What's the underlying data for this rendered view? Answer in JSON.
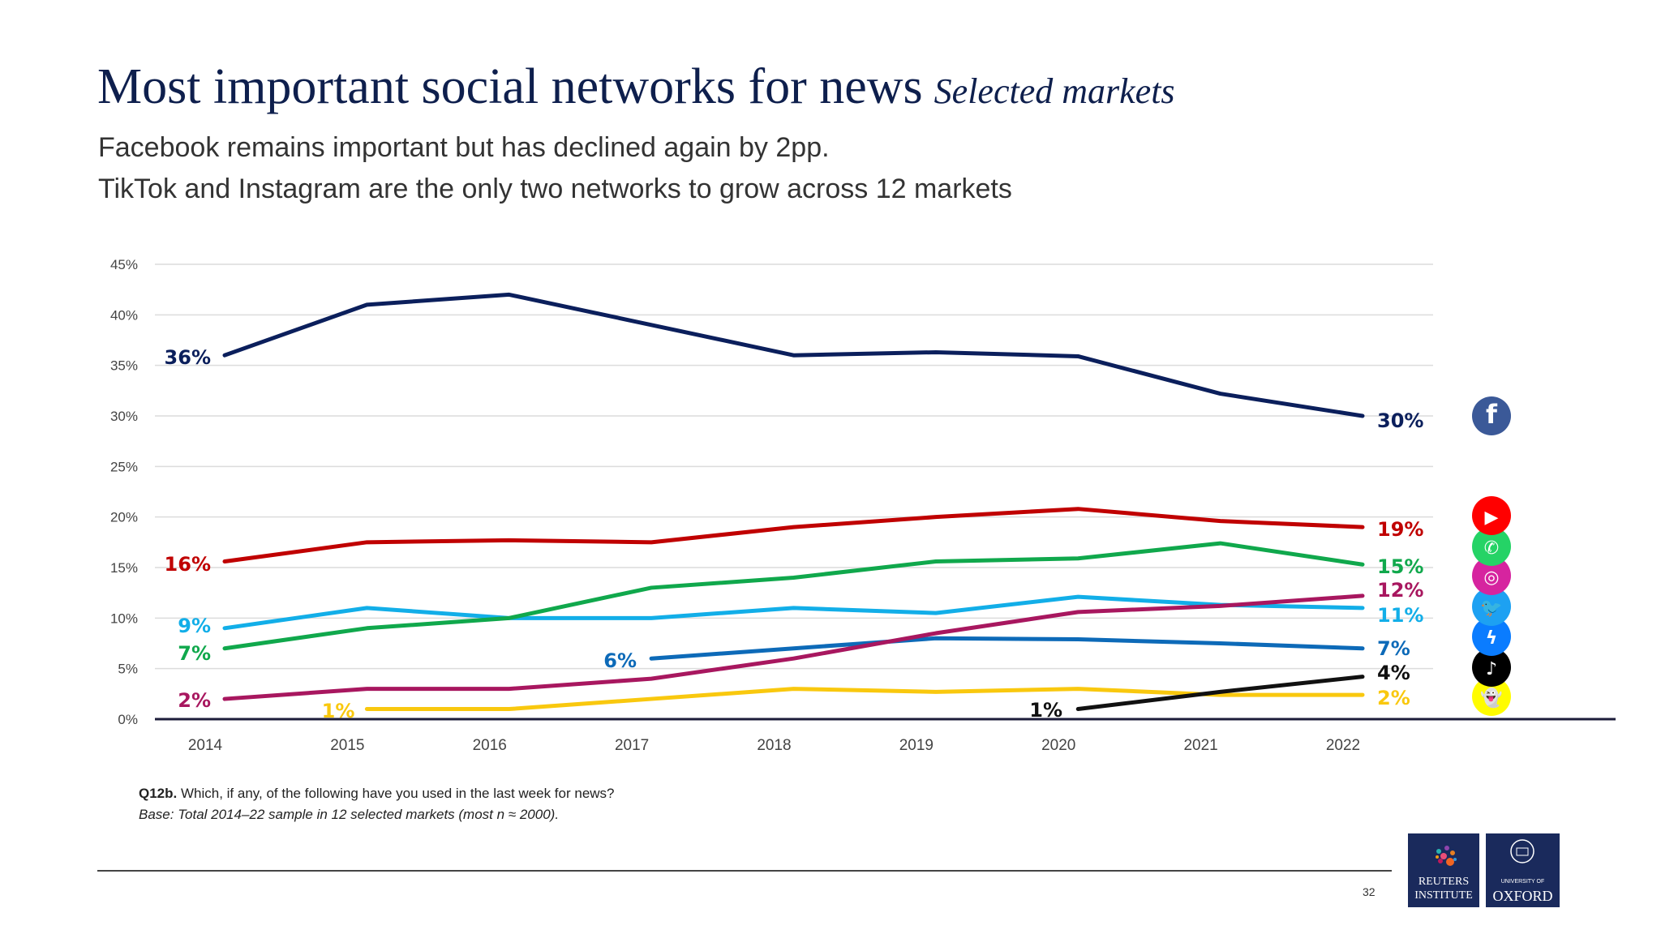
{
  "header": {
    "title": "Most important social networks for news",
    "title_suffix": "Selected markets",
    "subtitle_lines": [
      "Facebook remains important but has declined again by 2pp.",
      "TikTok and Instagram are the only two networks to grow across 12 markets"
    ]
  },
  "chart_data": {
    "type": "line",
    "x": [
      2014,
      2015,
      2016,
      2017,
      2018,
      2019,
      2020,
      2021,
      2022
    ],
    "xtick_labels": [
      "2014",
      "2015",
      "2016",
      "2017",
      "2018",
      "2019",
      "2020",
      "2021",
      "2022"
    ],
    "ylim": [
      0,
      45
    ],
    "ytick_labels": [
      "0%",
      "5%",
      "10%",
      "15%",
      "20%",
      "25%",
      "30%",
      "35%",
      "40%",
      "45%"
    ],
    "yticks": [
      0,
      5,
      10,
      15,
      20,
      25,
      30,
      35,
      40,
      45
    ],
    "grid": true,
    "legend": "icons at right",
    "series": [
      {
        "icon": "facebook-icon",
        "color": "#0b1f5c",
        "values": [
          36,
          41,
          42,
          39,
          36,
          36.3,
          35.9,
          32.2,
          30
        ],
        "start_label": "36%",
        "end_label": "30%"
      },
      {
        "icon": "youtube-icon",
        "color": "#c00000",
        "values": [
          15.6,
          17.5,
          17.7,
          17.5,
          19,
          20,
          20.8,
          19.6,
          19
        ],
        "start_label": "16%",
        "end_label": "19%"
      },
      {
        "icon": "whatsapp-icon",
        "color": "#10a84c",
        "values": [
          7,
          9,
          10,
          13,
          14,
          15.6,
          15.9,
          17.4,
          15.3
        ],
        "start_label": "7%",
        "end_label": "15%"
      },
      {
        "icon": "instagram-icon",
        "color": "#a8175f",
        "values": [
          2,
          3,
          3,
          4,
          6,
          8.5,
          10.6,
          11.2,
          12.2
        ],
        "start_label": "2%",
        "end_label": "12%"
      },
      {
        "icon": "twitter-icon",
        "color": "#12aee8",
        "values": [
          9,
          11,
          10,
          10,
          11,
          10.5,
          12.1,
          11.3,
          11
        ],
        "start_label": "9%",
        "end_label": "11%"
      },
      {
        "icon": "messenger-icon",
        "color": "#0d6ab8",
        "values": [
          null,
          null,
          null,
          6,
          7,
          8,
          7.9,
          7.5,
          7
        ],
        "start_label": "6%",
        "end_label": "7%"
      },
      {
        "icon": "tiktok-icon",
        "color": "#111111",
        "values": [
          null,
          null,
          null,
          null,
          null,
          null,
          1,
          2.7,
          4.2
        ],
        "start_label": "1%",
        "end_label": "4%"
      },
      {
        "icon": "snapchat-icon",
        "color": "#f9c80e",
        "values": [
          null,
          1,
          1,
          2,
          3,
          2.7,
          3,
          2.4,
          2.4
        ],
        "start_label": "1%",
        "end_label": "2%"
      }
    ]
  },
  "footer": {
    "question_id": "Q12b.",
    "question": " Which, if any, of the following have you used in the last week for news?",
    "base": "Base: Total 2014–22 sample in  12  selected markets (most n ≈ 2000).",
    "page_number": "32",
    "logos": {
      "reuters": [
        "REUTERS",
        "INSTITUTE"
      ],
      "oxford": [
        "UNIVERSITY OF",
        "OXFORD"
      ]
    }
  }
}
